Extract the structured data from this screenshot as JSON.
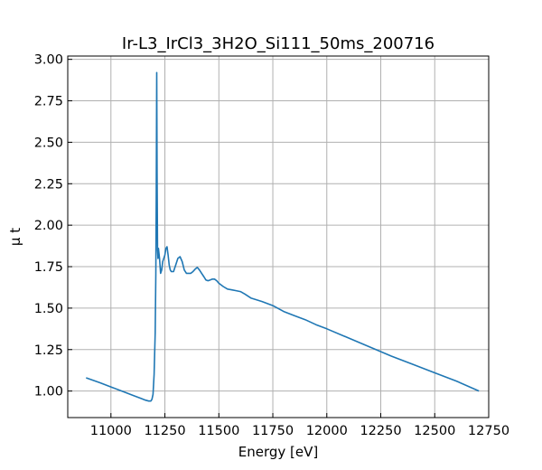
{
  "chart_data": {
    "type": "line",
    "title": "Ir-L3_IrCl3_3H2O_Si111_50ms_200716",
    "xlabel": "Energy [eV]",
    "ylabel": "μ t",
    "xlim": [
      10800,
      12750
    ],
    "ylim": [
      0.84,
      3.02
    ],
    "x_ticks": [
      11000,
      11250,
      11500,
      11750,
      12000,
      12250,
      12500,
      12750
    ],
    "x_tick_labels": [
      "11000",
      "11250",
      "11500",
      "11750",
      "12000",
      "12250",
      "12500",
      "12750"
    ],
    "y_ticks": [
      1.0,
      1.25,
      1.5,
      1.75,
      2.0,
      2.25,
      2.5,
      2.75,
      3.0
    ],
    "y_tick_labels": [
      "1.00",
      "1.25",
      "1.50",
      "1.75",
      "2.00",
      "2.25",
      "2.50",
      "2.75",
      "3.00"
    ],
    "grid": true,
    "color": "#1f77b4",
    "series": [
      {
        "x": [
          10885,
          10950,
          11000,
          11050,
          11100,
          11140,
          11160,
          11175,
          11185,
          11190,
          11195,
          11200,
          11205,
          11208,
          11210,
          11212,
          11214,
          11216,
          11218,
          11220,
          11225,
          11230,
          11235,
          11240,
          11245,
          11250,
          11255,
          11260,
          11265,
          11270,
          11275,
          11280,
          11290,
          11300,
          11310,
          11320,
          11330,
          11340,
          11350,
          11360,
          11370,
          11380,
          11390,
          11400,
          11410,
          11420,
          11430,
          11440,
          11450,
          11460,
          11470,
          11480,
          11490,
          11500,
          11520,
          11540,
          11560,
          11580,
          11600,
          11620,
          11650,
          11700,
          11750,
          11800,
          11850,
          11900,
          11950,
          12000,
          12100,
          12200,
          12300,
          12400,
          12500,
          12600,
          12705
        ],
        "y": [
          1.08,
          1.05,
          1.025,
          1.0,
          0.975,
          0.955,
          0.945,
          0.94,
          0.94,
          0.95,
          0.98,
          1.1,
          1.35,
          1.7,
          2.2,
          2.92,
          2.3,
          1.85,
          1.8,
          1.86,
          1.8,
          1.71,
          1.73,
          1.78,
          1.8,
          1.82,
          1.86,
          1.87,
          1.82,
          1.76,
          1.73,
          1.72,
          1.72,
          1.76,
          1.8,
          1.81,
          1.78,
          1.73,
          1.71,
          1.71,
          1.71,
          1.72,
          1.735,
          1.745,
          1.73,
          1.71,
          1.69,
          1.67,
          1.665,
          1.67,
          1.675,
          1.675,
          1.665,
          1.65,
          1.63,
          1.615,
          1.61,
          1.605,
          1.6,
          1.585,
          1.56,
          1.54,
          1.515,
          1.48,
          1.455,
          1.43,
          1.4,
          1.375,
          1.32,
          1.265,
          1.21,
          1.16,
          1.11,
          1.06,
          1.0
        ]
      }
    ]
  }
}
